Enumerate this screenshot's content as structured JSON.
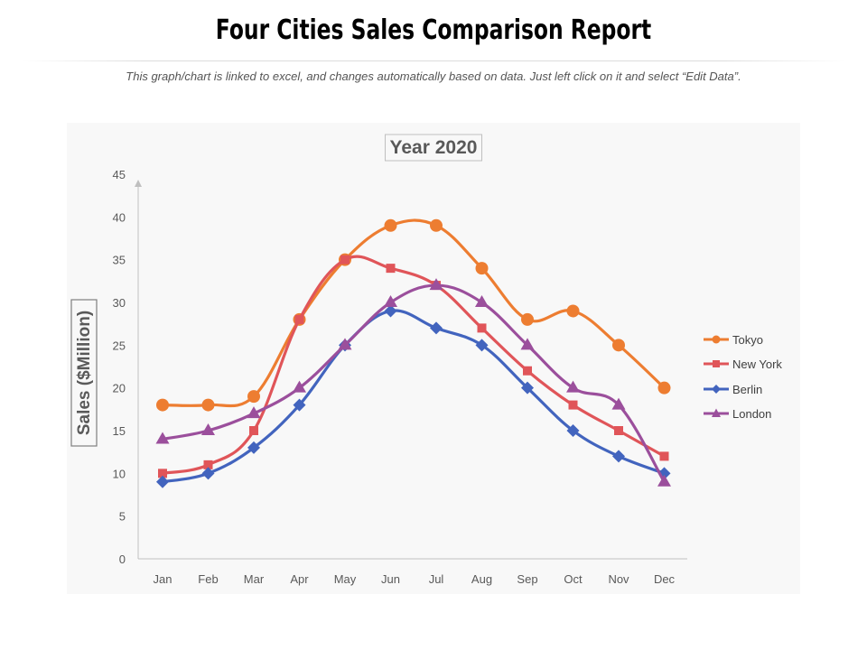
{
  "page": {
    "title": "Four Cities Sales Comparison Report",
    "subtitle": "This graph/chart is linked to excel,  and changes automatically based on data. Just left click on it and select “Edit Data”."
  },
  "chart_data": {
    "type": "line",
    "title": "Year 2020",
    "xlabel": "",
    "ylabel": "Sales ($Million)",
    "categories": [
      "Jan",
      "Feb",
      "Mar",
      "Apr",
      "May",
      "Jun",
      "Jul",
      "Aug",
      "Sep",
      "Oct",
      "Nov",
      "Dec"
    ],
    "ylim": [
      0,
      45
    ],
    "yticks": [
      0,
      5,
      10,
      15,
      20,
      25,
      30,
      35,
      40,
      45
    ],
    "legend_position": "right",
    "series": [
      {
        "name": "Tokyo",
        "color": "#ed7d31",
        "marker": "circle",
        "values": [
          18,
          18,
          19,
          28,
          35,
          39,
          39,
          34,
          28,
          29,
          25,
          20
        ]
      },
      {
        "name": "New York",
        "color": "#e05559",
        "marker": "square",
        "values": [
          10,
          11,
          15,
          28,
          35,
          34,
          32,
          27,
          22,
          18,
          15,
          12
        ]
      },
      {
        "name": "Berlin",
        "color": "#4264be",
        "marker": "diamond",
        "values": [
          9,
          10,
          13,
          18,
          25,
          29,
          27,
          25,
          20,
          15,
          12,
          10
        ]
      },
      {
        "name": "London",
        "color": "#9b4f9c",
        "marker": "triangle",
        "values": [
          14,
          15,
          17,
          20,
          25,
          30,
          32,
          30,
          25,
          20,
          18,
          9
        ]
      }
    ]
  }
}
